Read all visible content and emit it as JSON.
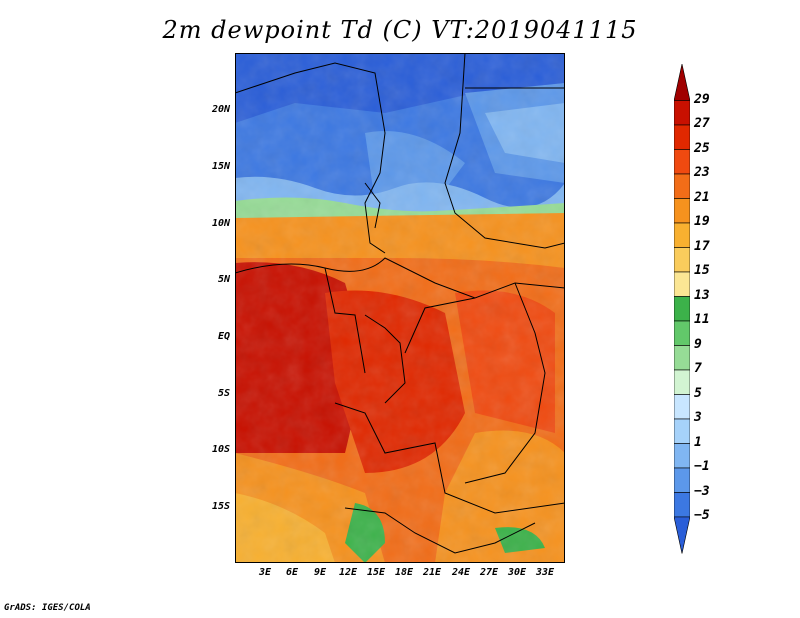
{
  "title": "2m dewpoint Td (C) VT:2019041115",
  "credit": "GrADS: IGES/COLA",
  "map": {
    "y_ticks": [
      "20N",
      "15N",
      "10N",
      "5N",
      "EQ",
      "5S",
      "10S",
      "15S"
    ],
    "x_ticks": [
      "3E",
      "6E",
      "9E",
      "12E",
      "15E",
      "18E",
      "21E",
      "24E",
      "27E",
      "30E",
      "33E"
    ]
  },
  "colorbar": {
    "labels": [
      "29",
      "27",
      "25",
      "23",
      "21",
      "19",
      "17",
      "15",
      "13",
      "11",
      "9",
      "7",
      "5",
      "3",
      "1",
      "−1",
      "−3",
      "−5"
    ],
    "colors": [
      "#a00000",
      "#c81000",
      "#e02800",
      "#f04a10",
      "#f26d18",
      "#f6921e",
      "#f8b030",
      "#facc5c",
      "#fbe694",
      "#3cb24a",
      "#62c86a",
      "#96dc96",
      "#d2f4d2",
      "#c8e6ff",
      "#a6d2fa",
      "#80b6f2",
      "#5c98ea",
      "#3c78e2",
      "#2a5ed8"
    ]
  }
}
